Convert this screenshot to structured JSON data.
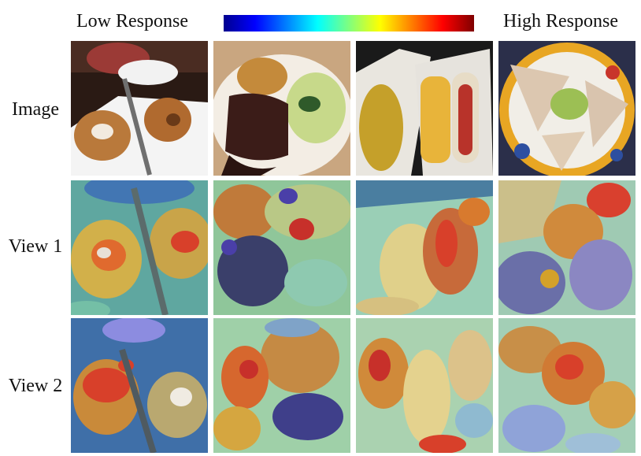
{
  "header": {
    "low_label": "Low Response",
    "high_label": "High Response"
  },
  "rows": {
    "image_label": "Image",
    "view1_label": "View 1",
    "view2_label": "View 2"
  },
  "colorbar": {
    "colors": [
      "#00008f",
      "#0000ff",
      "#007fff",
      "#00ffff",
      "#7fff7f",
      "#ffff00",
      "#ff7f00",
      "#ff0000",
      "#7f0000"
    ]
  }
}
